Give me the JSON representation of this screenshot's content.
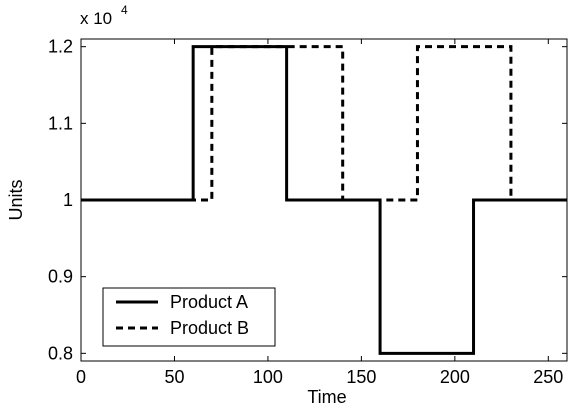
{
  "chart_data": {
    "type": "line",
    "line_style": "stairs",
    "xlabel": "Time",
    "ylabel": "Units",
    "xlim": [
      0,
      260
    ],
    "ylim": [
      0.79,
      1.21
    ],
    "xticks": [
      0,
      50,
      100,
      150,
      200,
      250
    ],
    "xtick_labels": [
      "0",
      "50",
      "100",
      "150",
      "200",
      "250"
    ],
    "yticks": [
      0.8,
      0.9,
      1.0,
      1.1,
      1.2
    ],
    "ytick_labels": [
      "0.8",
      "0.9",
      "1",
      "1.1",
      "1.2"
    ],
    "y_multiplier": {
      "base": "x 10",
      "exponent": "4"
    },
    "grid": false,
    "legend_position": "bottom-left",
    "series": [
      {
        "name": "Product A",
        "style": "solid",
        "color": "#000000",
        "x": [
          0,
          60,
          60,
          110,
          110,
          160,
          160,
          210,
          210,
          260
        ],
        "y": [
          1.0,
          1.0,
          1.2,
          1.2,
          1.0,
          1.0,
          0.8,
          0.8,
          1.0,
          1.0
        ]
      },
      {
        "name": "Product B",
        "style": "dashed",
        "color": "#000000",
        "x": [
          0,
          70,
          70,
          140,
          140,
          180,
          180,
          230,
          230,
          260
        ],
        "y": [
          1.0,
          1.0,
          1.2,
          1.2,
          1.0,
          1.0,
          1.2,
          1.2,
          1.0,
          1.0
        ]
      }
    ]
  }
}
